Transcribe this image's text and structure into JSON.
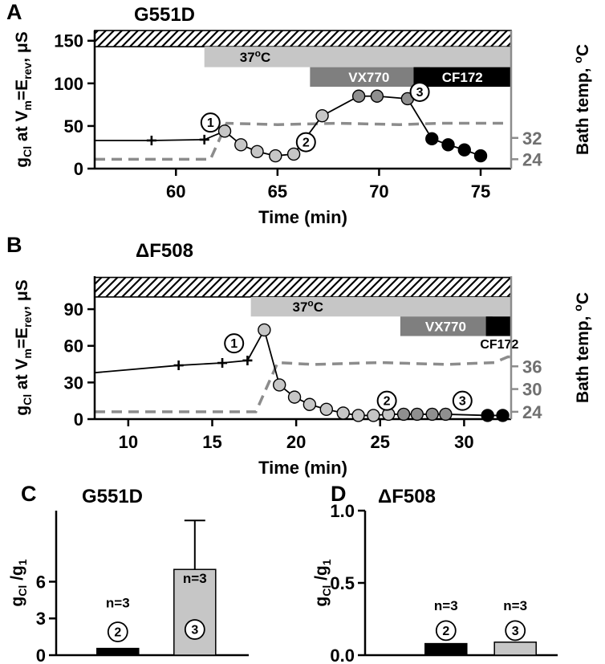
{
  "figure": {
    "panel_letters": [
      "A",
      "B",
      "C",
      "D"
    ]
  },
  "chart_data": [
    {
      "id": "A",
      "type": "line",
      "title": "G551D",
      "xlabel": "Time (min)",
      "ylabel_left": [
        {
          "t": "g"
        },
        {
          "t": "Cl",
          "sub": true
        },
        {
          "t": " at V"
        },
        {
          "t": "m",
          "sub": true
        },
        {
          "t": "=E"
        },
        {
          "t": "rev",
          "sub": true
        },
        {
          "t": ", μS"
        }
      ],
      "ylabel_right": [
        {
          "t": "Bath temp, "
        },
        {
          "t": "o",
          "sup": true
        },
        {
          "t": "C"
        }
      ],
      "xlim": [
        56,
        76.5
      ],
      "ylim": [
        0,
        162
      ],
      "xticks": [
        60,
        65,
        70,
        75
      ],
      "yticks": [
        0,
        50,
        100,
        150
      ],
      "right_axis": {
        "t0": 24,
        "left0": 11,
        "per_deg": 3.125,
        "ticks": [
          32,
          24
        ]
      },
      "bands": [
        {
          "kind": "hatch",
          "x0": 56,
          "x1": 76.5,
          "y0": 143,
          "y1": 162
        },
        {
          "kind": "fill",
          "color": "#c6c6c6",
          "x0": 61.4,
          "x1": 76.5,
          "y0": 119,
          "y1": 143,
          "label": [
            {
              "t": "37"
            },
            {
              "t": "o",
              "sup": true
            },
            {
              "t": "C"
            }
          ],
          "label_x": 63.9,
          "label_color": "#000000"
        },
        {
          "kind": "fill",
          "color": "#7f7f7f",
          "x0": 66.6,
          "x1": 72.5,
          "y0": 96,
          "y1": 119,
          "label": [
            {
              "t": "VX770"
            }
          ],
          "label_x": 69.5,
          "label_color": "#ffffff"
        },
        {
          "kind": "fill",
          "color": "#000000",
          "x0": 71.7,
          "x1": 76.5,
          "y0": 96,
          "y1": 119,
          "label": [
            {
              "t": "CF172"
            }
          ],
          "label_x": 74.1,
          "label_color": "#ffffff"
        }
      ],
      "outside_labels": [],
      "temp_series": [
        [
          56,
          24
        ],
        [
          61.7,
          24
        ],
        [
          62.5,
          37.5
        ],
        [
          65,
          37
        ],
        [
          68,
          37.5
        ],
        [
          71,
          37
        ],
        [
          73,
          37.5
        ],
        [
          76.3,
          37.5
        ]
      ],
      "trace": {
        "line_start": [
          56,
          33
        ],
        "groups": [
          {
            "marker": "plus",
            "color": "#000000",
            "points": [
              [
                58.8,
                33
              ],
              [
                61.4,
                34
              ]
            ]
          },
          {
            "marker": "circle",
            "color": "#c6c6c6",
            "points": [
              [
                62.4,
                44
              ],
              [
                63.2,
                28
              ],
              [
                64.0,
                20
              ],
              [
                64.9,
                15
              ],
              [
                65.8,
                17
              ],
              [
                67.2,
                62
              ]
            ]
          },
          {
            "marker": "circle",
            "color": "#8f8f8f",
            "points": [
              [
                69.0,
                85
              ],
              [
                69.9,
                85
              ],
              [
                71.4,
                82
              ]
            ]
          },
          {
            "marker": "circle",
            "color": "#000000",
            "points": [
              [
                72.6,
                35
              ],
              [
                73.4,
                28
              ],
              [
                74.2,
                22
              ],
              [
                75.0,
                15
              ]
            ]
          }
        ]
      },
      "annotations": [
        {
          "label": "1",
          "x": 61.7,
          "y": 54
        },
        {
          "label": "2",
          "x": 66.4,
          "y": 31
        },
        {
          "label": "3",
          "x": 72.0,
          "y": 90
        }
      ]
    },
    {
      "id": "B",
      "type": "line",
      "title": "ΔF508",
      "xlabel": "Time (min)",
      "ylabel_left": [
        {
          "t": "g"
        },
        {
          "t": "Cl",
          "sub": true
        },
        {
          "t": " at V"
        },
        {
          "t": "m",
          "sub": true
        },
        {
          "t": "=E"
        },
        {
          "t": "rev",
          "sub": true
        },
        {
          "t": ", μS"
        }
      ],
      "ylabel_right": [
        {
          "t": "Bath temp, "
        },
        {
          "t": "o",
          "sup": true
        },
        {
          "t": "C"
        }
      ],
      "xlim": [
        8,
        32.8
      ],
      "ylim": [
        0,
        117
      ],
      "xticks": [
        10,
        15,
        20,
        25,
        30
      ],
      "yticks": [
        0,
        30,
        60,
        90
      ],
      "right_axis": {
        "t0": 24,
        "left0": 6,
        "per_deg": 3.1,
        "ticks": [
          36,
          30,
          24
        ]
      },
      "bands": [
        {
          "kind": "hatch",
          "x0": 8,
          "x1": 32.8,
          "y0": 100,
          "y1": 116
        },
        {
          "kind": "fill",
          "color": "#c6c6c6",
          "x0": 17.3,
          "x1": 32.8,
          "y0": 84,
          "y1": 100,
          "label": [
            {
              "t": "37"
            },
            {
              "t": "o",
              "sup": true
            },
            {
              "t": "C"
            }
          ],
          "label_x": 20.7,
          "label_color": "#000000"
        },
        {
          "kind": "fill",
          "color": "#7f7f7f",
          "x0": 26.2,
          "x1": 31.7,
          "y0": 68,
          "y1": 84,
          "label": [
            {
              "t": "VX770"
            }
          ],
          "label_x": 28.9,
          "label_color": "#ffffff"
        },
        {
          "kind": "fill",
          "color": "#000000",
          "x0": 31.3,
          "x1": 32.8,
          "y0": 68,
          "y1": 84,
          "label": null
        }
      ],
      "outside_labels": [
        {
          "text": [
            {
              "t": "CF172"
            }
          ],
          "x": 32.1,
          "y": 58,
          "color": "#000000"
        }
      ],
      "temp_series": [
        [
          8,
          24
        ],
        [
          17.6,
          24
        ],
        [
          18.9,
          37
        ],
        [
          21,
          36.5
        ],
        [
          25,
          37
        ],
        [
          29,
          36.5
        ],
        [
          31.8,
          37
        ],
        [
          32.6,
          38.5
        ],
        [
          32.8,
          38.5
        ]
      ],
      "trace": {
        "line_start": [
          8,
          38
        ],
        "groups": [
          {
            "marker": "plus",
            "color": "#000000",
            "points": [
              [
                13,
                44
              ],
              [
                15.6,
                46
              ],
              [
                17.1,
                48
              ]
            ]
          },
          {
            "marker": "circle",
            "color": "#c6c6c6",
            "points": [
              [
                18.1,
                73
              ],
              [
                19.0,
                28
              ],
              [
                19.9,
                18
              ],
              [
                20.8,
                12
              ],
              [
                21.8,
                8
              ],
              [
                22.8,
                5
              ],
              [
                23.7,
                3
              ],
              [
                24.6,
                3
              ],
              [
                25.5,
                4
              ]
            ]
          },
          {
            "marker": "circle",
            "color": "#8f8f8f",
            "points": [
              [
                26.4,
                4
              ],
              [
                27.2,
                4
              ],
              [
                28.1,
                4
              ],
              [
                28.9,
                4
              ]
            ]
          },
          {
            "marker": "circle",
            "color": "#000000",
            "points": [
              [
                31.4,
                3
              ],
              [
                32.3,
                3
              ]
            ]
          }
        ]
      },
      "annotations": [
        {
          "label": "1",
          "x": 16.3,
          "y": 62
        },
        {
          "label": "2",
          "x": 25.4,
          "y": 15
        },
        {
          "label": "3",
          "x": 29.9,
          "y": 15
        }
      ]
    },
    {
      "id": "C",
      "type": "bar",
      "title": "G551D",
      "ylabel": [
        {
          "t": "g"
        },
        {
          "t": "Cl",
          "sub": true
        },
        {
          "t": " /g"
        },
        {
          "t": "1",
          "sub": true
        }
      ],
      "ylim": [
        0,
        11.8
      ],
      "yticks": [
        0,
        3,
        6
      ],
      "tick_decimals": 0,
      "bars": [
        {
          "category": "2",
          "value": 0.55,
          "color": "#000000",
          "n_label": "n=3",
          "n_y": 3.9,
          "circle_y": 1.9
        },
        {
          "category": "3",
          "value": 7.0,
          "error_up": 4.0,
          "color": "#c6c6c6",
          "n_label": "n=3",
          "n_y": 5.9,
          "circle_y": 2.1
        }
      ]
    },
    {
      "id": "D",
      "type": "bar",
      "title": "ΔF508",
      "ylabel": [
        {
          "t": "g"
        },
        {
          "t": "Cl",
          "sub": true
        },
        {
          "t": " /g"
        },
        {
          "t": "1",
          "sub": true
        }
      ],
      "ylim": [
        0,
        1.0
      ],
      "yticks": [
        0,
        0.5,
        1.0
      ],
      "tick_decimals": 1,
      "bars": [
        {
          "category": "2",
          "value": 0.08,
          "color": "#000000",
          "n_label": "n=3",
          "n_y": 0.31,
          "circle_y": 0.17
        },
        {
          "category": "3",
          "value": 0.09,
          "color": "#c6c6c6",
          "n_label": "n=3",
          "n_y": 0.31,
          "circle_y": 0.17
        }
      ]
    }
  ]
}
